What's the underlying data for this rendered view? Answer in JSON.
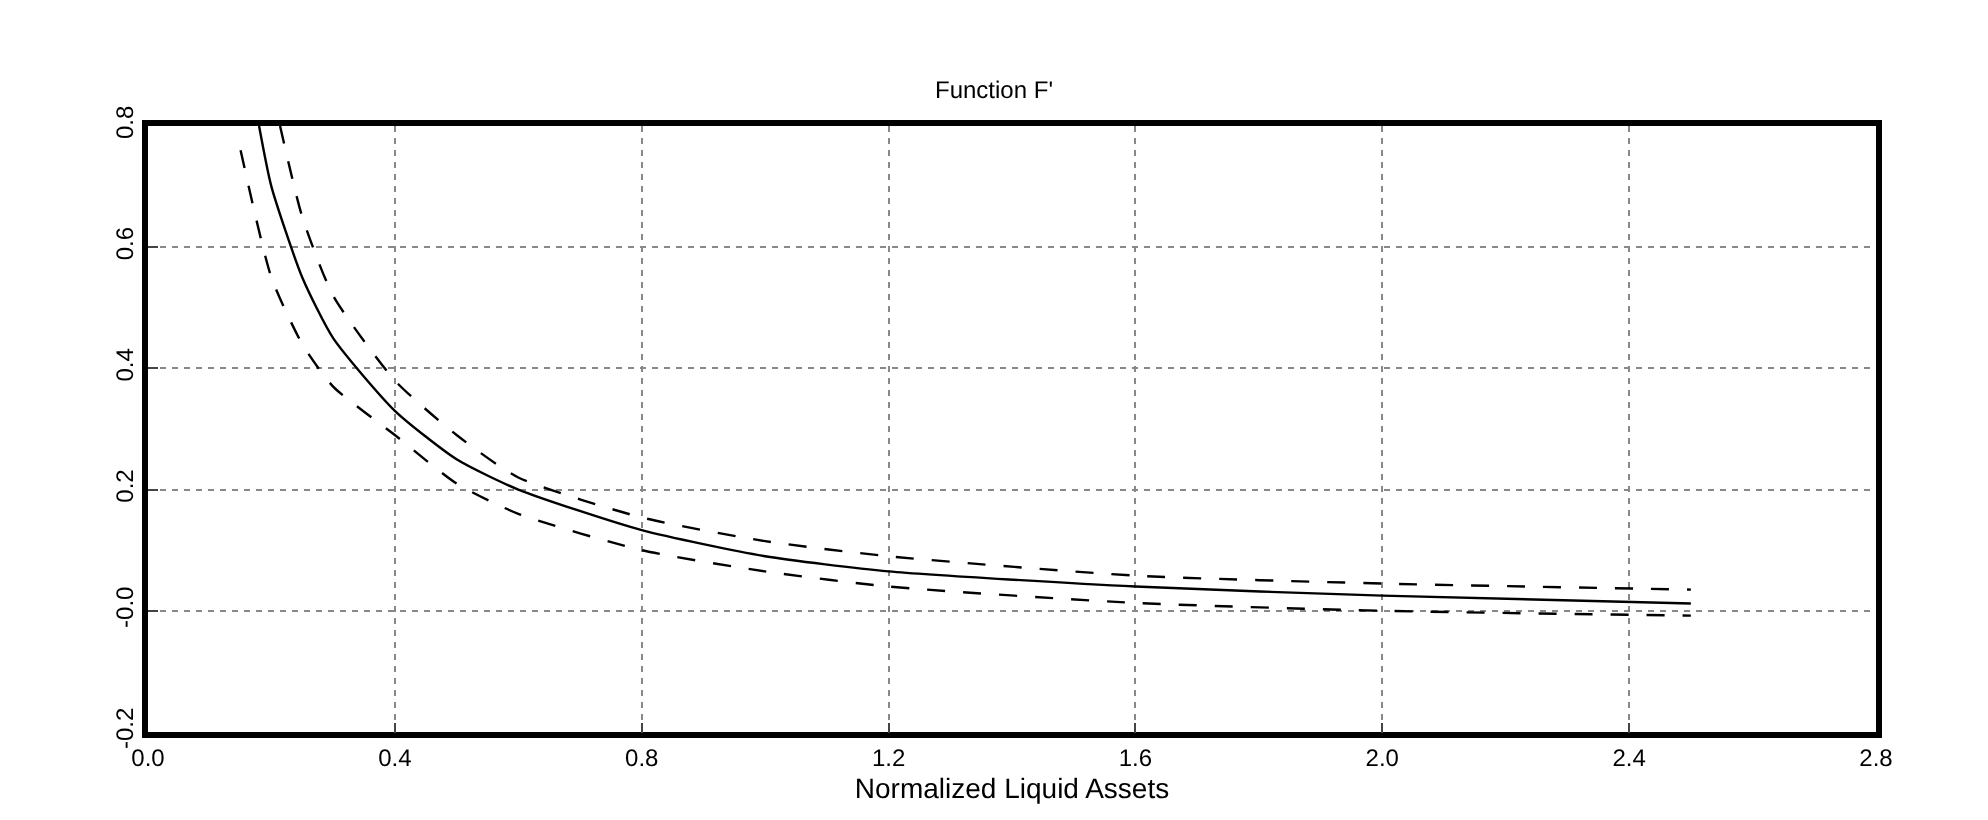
{
  "chart_data": {
    "type": "line",
    "title": "Function F'",
    "xlabel": "Normalized Liquid Assets",
    "xlim": [
      0.0,
      2.8
    ],
    "xticks": [
      {
        "value": 0.0,
        "label": "0.0"
      },
      0.4,
      0.8,
      1.2,
      1.6,
      {
        "value": 2.0,
        "label": "2.0"
      },
      2.4,
      2.8
    ],
    "ylim": [
      -0.2,
      0.8
    ],
    "yticks": [
      -0.2,
      {
        "value": 0.0,
        "label": "-0.0"
      },
      0.2,
      0.4,
      0.6,
      0.8
    ],
    "grid": true,
    "series": [
      {
        "color": "#000000",
        "line_style": "solid",
        "x": [
          0.18,
          0.2,
          0.25,
          0.3,
          0.4,
          0.5,
          0.6,
          0.8,
          1.0,
          1.2,
          1.6,
          2.0,
          2.5
        ],
        "values": [
          0.8,
          0.7,
          0.55,
          0.45,
          0.33,
          0.25,
          0.2,
          0.133,
          0.09,
          0.065,
          0.04,
          0.025,
          0.012
        ]
      },
      {
        "color": "#000000",
        "line_style": "dashed",
        "x": [
          0.214,
          0.25,
          0.3,
          0.4,
          0.5,
          0.6,
          0.8,
          1.0,
          1.2,
          1.6,
          2.0,
          2.5
        ],
        "values": [
          0.8,
          0.65,
          0.52,
          0.38,
          0.29,
          0.22,
          0.154,
          0.115,
          0.09,
          0.058,
          0.045,
          0.035
        ]
      },
      {
        "color": "#000000",
        "line_style": "dashed",
        "x": [
          0.15,
          0.2,
          0.25,
          0.3,
          0.4,
          0.5,
          0.6,
          0.8,
          1.0,
          1.2,
          1.6,
          2.0,
          2.5
        ],
        "values": [
          0.76,
          0.55,
          0.44,
          0.37,
          0.29,
          0.21,
          0.16,
          0.1,
          0.065,
          0.04,
          0.013,
          0.0,
          -0.008
        ]
      }
    ]
  }
}
